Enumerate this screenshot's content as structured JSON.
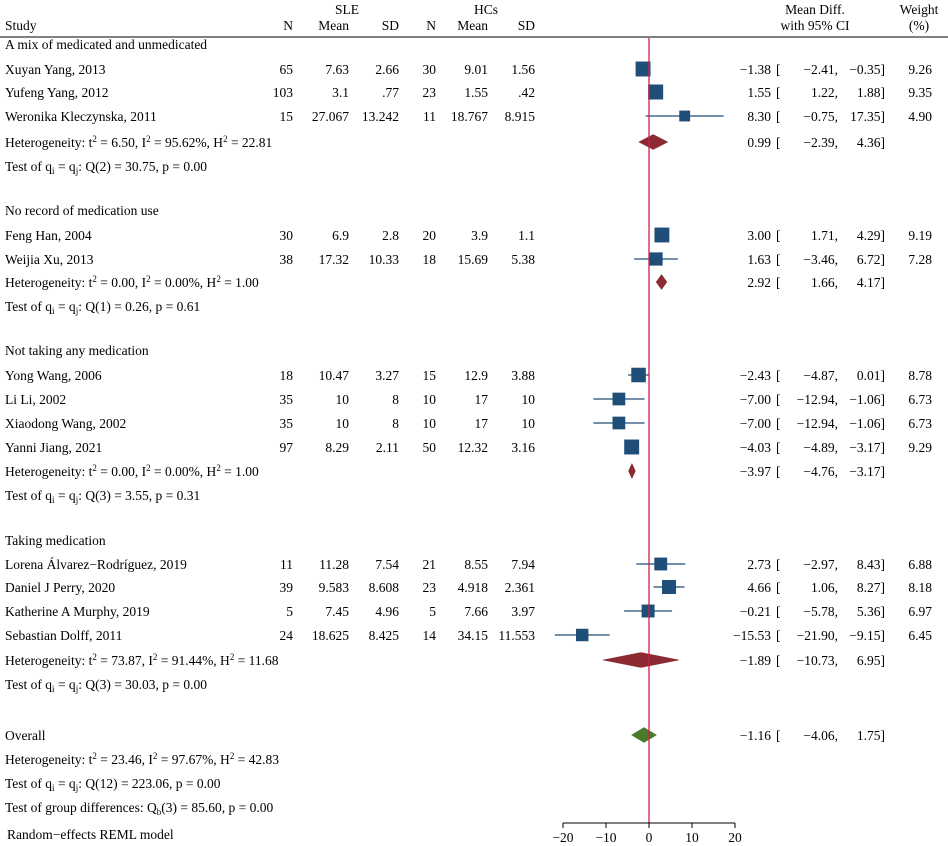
{
  "chart_data": {
    "type": "forest",
    "model_note": "Random−effects REML model",
    "headers": {
      "study": "Study",
      "sle_group": "SLE",
      "hc_group": "HCs",
      "n1": "N",
      "mean1": "Mean",
      "sd1": "SD",
      "n2": "N",
      "mean2": "Mean",
      "sd2": "SD",
      "effect_line1": "Mean Diff.",
      "effect_line2": "with 95% CI",
      "weight_line1": "Weight",
      "weight_line2": "(%)"
    },
    "x_axis": {
      "min": -20,
      "max": 20,
      "ticks": [
        "−20",
        "−10",
        "0",
        "10",
        "20"
      ],
      "tick_values": [
        -20,
        -10,
        0,
        10,
        20
      ]
    },
    "groups": [
      {
        "label": "A mix of medicated and unmedicated",
        "studies": [
          {
            "name": "Xuyan Yang, 2013",
            "n1": "65",
            "mean1": "7.63",
            "sd1": "2.66",
            "n2": "30",
            "mean2": "9.01",
            "sd2": "1.56",
            "md": -1.38,
            "lo": -2.41,
            "hi": -0.35,
            "md_t": "−1.38",
            "lo_t": "−2.41,",
            "hi_t": "−0.35]",
            "weight": "9.26",
            "w": 9.26
          },
          {
            "name": "Yufeng Yang, 2012",
            "n1": "103",
            "mean1": "3.1",
            "sd1": ".77",
            "n2": "23",
            "mean2": "1.55",
            "sd2": ".42",
            "md": 1.55,
            "lo": 1.22,
            "hi": 1.88,
            "md_t": "1.55",
            "lo_t": "1.22,",
            "hi_t": "1.88]",
            "weight": "9.35",
            "w": 9.35
          },
          {
            "name": "Weronika Kleczynska, 2011",
            "n1": "15",
            "mean1": "27.067",
            "sd1": "13.242",
            "n2": "11",
            "mean2": "18.767",
            "sd2": "8.915",
            "md": 8.3,
            "lo": -0.75,
            "hi": 17.35,
            "md_t": "8.30",
            "lo_t": "−0.75,",
            "hi_t": "17.35]",
            "weight": "4.90",
            "w": 4.9
          }
        ],
        "pooled": {
          "md": 0.99,
          "lo": -2.39,
          "hi": 4.36,
          "md_t": "0.99",
          "lo_t": "−2.39,",
          "hi_t": "4.36]"
        },
        "heterogeneity": {
          "prefix": "Heterogeneity: t",
          "tau_sup": "2",
          "mid": " = 6.50, I",
          "i_sup": "2",
          "mid2": " = 95.62%, H",
          "h_sup": "2",
          "tail": " = 22.81"
        },
        "test": {
          "prefix": "Test of q",
          "sub1": "i",
          "mid": " = q",
          "sub2": "j",
          "tail": ": Q(2) = 30.75, p = 0.00"
        }
      },
      {
        "label": "No record of medication use",
        "studies": [
          {
            "name": "Feng Han, 2004",
            "n1": "30",
            "mean1": "6.9",
            "sd1": "2.8",
            "n2": "20",
            "mean2": "3.9",
            "sd2": "1.1",
            "md": 3.0,
            "lo": 1.71,
            "hi": 4.29,
            "md_t": "3.00",
            "lo_t": "1.71,",
            "hi_t": "4.29]",
            "weight": "9.19",
            "w": 9.19
          },
          {
            "name": "Weijia Xu, 2013",
            "n1": "38",
            "mean1": "17.32",
            "sd1": "10.33",
            "n2": "18",
            "mean2": "15.69",
            "sd2": "5.38",
            "md": 1.63,
            "lo": -3.46,
            "hi": 6.72,
            "md_t": "1.63",
            "lo_t": "−3.46,",
            "hi_t": "6.72]",
            "weight": "7.28",
            "w": 7.28
          }
        ],
        "pooled": {
          "md": 2.92,
          "lo": 1.66,
          "hi": 4.17,
          "md_t": "2.92",
          "lo_t": "1.66,",
          "hi_t": "4.17]"
        },
        "heterogeneity": {
          "prefix": "Heterogeneity: t",
          "tau_sup": "2",
          "mid": " = 0.00, I",
          "i_sup": "2",
          "mid2": " = 0.00%, H",
          "h_sup": "2",
          "tail": " = 1.00"
        },
        "test": {
          "prefix": "Test of q",
          "sub1": "i",
          "mid": " = q",
          "sub2": "j",
          "tail": ": Q(1) = 0.26, p = 0.61"
        }
      },
      {
        "label": "Not taking any medication",
        "studies": [
          {
            "name": "Yong Wang, 2006",
            "n1": "18",
            "mean1": "10.47",
            "sd1": "3.27",
            "n2": "15",
            "mean2": "12.9",
            "sd2": "3.88",
            "md": -2.43,
            "lo": -4.87,
            "hi": 0.01,
            "md_t": "−2.43",
            "lo_t": "−4.87,",
            "hi_t": "0.01]",
            "weight": "8.78",
            "w": 8.78
          },
          {
            "name": "Li Li, 2002",
            "n1": "35",
            "mean1": "10",
            "sd1": "8",
            "n2": "10",
            "mean2": "17",
            "sd2": "10",
            "md": -7.0,
            "lo": -12.94,
            "hi": -1.06,
            "md_t": "−7.00",
            "lo_t": "−12.94,",
            "hi_t": "−1.06]",
            "weight": "6.73",
            "w": 6.73
          },
          {
            "name": "Xiaodong Wang, 2002",
            "n1": "35",
            "mean1": "10",
            "sd1": "8",
            "n2": "10",
            "mean2": "17",
            "sd2": "10",
            "md": -7.0,
            "lo": -12.94,
            "hi": -1.06,
            "md_t": "−7.00",
            "lo_t": "−12.94,",
            "hi_t": "−1.06]",
            "weight": "6.73",
            "w": 6.73
          },
          {
            "name": "Yanni Jiang, 2021",
            "n1": "97",
            "mean1": "8.29",
            "sd1": "2.11",
            "n2": "50",
            "mean2": "12.32",
            "sd2": "3.16",
            "md": -4.03,
            "lo": -4.89,
            "hi": -3.17,
            "md_t": "−4.03",
            "lo_t": "−4.89,",
            "hi_t": "−3.17]",
            "weight": "9.29",
            "w": 9.29
          }
        ],
        "pooled": {
          "md": -3.97,
          "lo": -4.76,
          "hi": -3.17,
          "md_t": "−3.97",
          "lo_t": "−4.76,",
          "hi_t": "−3.17]"
        },
        "heterogeneity": {
          "prefix": "Heterogeneity: t",
          "tau_sup": "2",
          "mid": " = 0.00, I",
          "i_sup": "2",
          "mid2": " = 0.00%, H",
          "h_sup": "2",
          "tail": " = 1.00"
        },
        "test": {
          "prefix": "Test of q",
          "sub1": "i",
          "mid": " = q",
          "sub2": "j",
          "tail": ": Q(3) = 3.55, p = 0.31"
        }
      },
      {
        "label": "Taking medication",
        "studies": [
          {
            "name": "Lorena Álvarez−Rodríguez, 2019",
            "n1": "11",
            "mean1": "11.28",
            "sd1": "7.54",
            "n2": "21",
            "mean2": "8.55",
            "sd2": "7.94",
            "md": 2.73,
            "lo": -2.97,
            "hi": 8.43,
            "md_t": "2.73",
            "lo_t": "−2.97,",
            "hi_t": "8.43]",
            "weight": "6.88",
            "w": 6.88
          },
          {
            "name": "Daniel J Perry, 2020",
            "n1": "39",
            "mean1": "9.583",
            "sd1": "8.608",
            "n2": "23",
            "mean2": "4.918",
            "sd2": "2.361",
            "md": 4.66,
            "lo": 1.06,
            "hi": 8.27,
            "md_t": "4.66",
            "lo_t": "1.06,",
            "hi_t": "8.27]",
            "weight": "8.18",
            "w": 8.18
          },
          {
            "name": "Katherine A Murphy, 2019",
            "n1": "5",
            "mean1": "7.45",
            "sd1": "4.96",
            "n2": "5",
            "mean2": "7.66",
            "sd2": "3.97",
            "md": -0.21,
            "lo": -5.78,
            "hi": 5.36,
            "md_t": "−0.21",
            "lo_t": "−5.78,",
            "hi_t": "5.36]",
            "weight": "6.97",
            "w": 6.97
          },
          {
            "name": "Sebastian Dolff, 2011",
            "n1": "24",
            "mean1": "18.625",
            "sd1": "8.425",
            "n2": "14",
            "mean2": "34.15",
            "sd2": "11.553",
            "md": -15.53,
            "lo": -21.9,
            "hi": -9.15,
            "md_t": "−15.53",
            "lo_t": "−21.90,",
            "hi_t": "−9.15]",
            "weight": "6.45",
            "w": 6.45
          }
        ],
        "pooled": {
          "md": -1.89,
          "lo": -10.73,
          "hi": 6.95,
          "md_t": "−1.89",
          "lo_t": "−10.73,",
          "hi_t": "6.95]"
        },
        "heterogeneity": {
          "prefix": "Heterogeneity: t",
          "tau_sup": "2",
          "mid": " = 73.87, I",
          "i_sup": "2",
          "mid2": " = 91.44%, H",
          "h_sup": "2",
          "tail": " = 11.68"
        },
        "test": {
          "prefix": "Test of q",
          "sub1": "i",
          "mid": " = q",
          "sub2": "j",
          "tail": ": Q(3) = 30.03, p = 0.00"
        }
      }
    ],
    "overall": {
      "label": "Overall",
      "md": -1.16,
      "lo": -4.06,
      "hi": 1.75,
      "md_t": "−1.16",
      "lo_t": "−4.06,",
      "hi_t": "1.75]",
      "heterogeneity": {
        "prefix": "Heterogeneity: t",
        "tau_sup": "2",
        "mid": " = 23.46, I",
        "i_sup": "2",
        "mid2": " = 97.67%, H",
        "h_sup": "2",
        "tail": " = 42.83"
      },
      "test": {
        "prefix": "Test of q",
        "sub1": "i",
        "mid": " = q",
        "sub2": "j",
        "tail": ": Q(12) = 223.06, p = 0.00"
      },
      "group_test": {
        "prefix": "Test of group differences: Q",
        "sub": "b",
        "tail": "(3) = 85.60, p = 0.00"
      }
    },
    "colors": {
      "study_marker": "#1f4e79",
      "ci_line": "#1f4e79",
      "subgroup_diamond": "#8b2a33",
      "overall_diamond": "#4a7a2c",
      "null_line": "#cc1f52",
      "text": "#000000"
    }
  }
}
